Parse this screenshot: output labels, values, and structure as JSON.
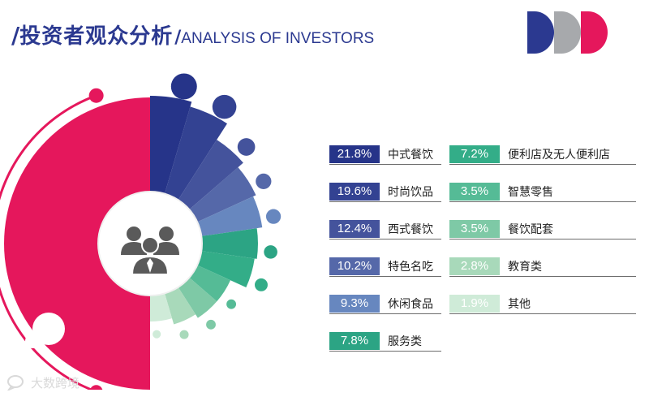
{
  "header": {
    "slash": "/",
    "title_cn": "投资者观众分析",
    "slash2": "/",
    "title_en": "ANALYSIS OF INVESTORS"
  },
  "brand_colors": {
    "navy": "#2b3990",
    "gray": "#a7a9ac",
    "crimson": "#e5175c"
  },
  "watermark": {
    "text": "大数跨境",
    "icon": "chat-bubble-icon"
  },
  "center_icon": "audience-group-icon",
  "chart_data": {
    "type": "pie",
    "variant": "radial-sunburst",
    "unit": "%",
    "categories": [
      "中式餐饮",
      "时尚饮品",
      "西式餐饮",
      "特色名吃",
      "休闲食品",
      "服务类",
      "便利店及无人便利店",
      "智慧零售",
      "餐饮配套",
      "教育类",
      "其他"
    ],
    "values": [
      21.8,
      19.6,
      12.4,
      10.2,
      9.3,
      7.8,
      7.2,
      3.5,
      3.5,
      2.8,
      1.9
    ],
    "labels": [
      "21.8%",
      "19.6%",
      "12.4%",
      "10.2%",
      "9.3%",
      "7.8%",
      "7.2%",
      "3.5%",
      "3.5%",
      "2.8%",
      "1.9%"
    ],
    "colors": [
      "#263489",
      "#334292",
      "#44539c",
      "#5568a9",
      "#6787bf",
      "#2ca484",
      "#33ad88",
      "#55bb96",
      "#7ec9a6",
      "#a8d9ba",
      "#cfebd8"
    ],
    "legend_position": "right"
  }
}
